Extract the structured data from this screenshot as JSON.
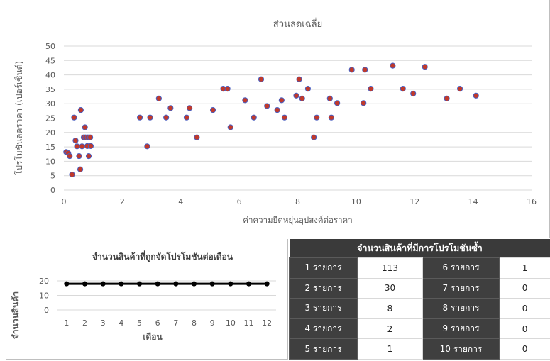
{
  "chart_data": [
    {
      "type": "scatter",
      "title": "ส่วนลดเฉลี่ย",
      "xlabel": "ค่าความยืดหยุ่นอุปสงค์ต่อราคา",
      "ylabel": "โปรโมชันลดราคา (เปอร์เซ็นต์)",
      "xlim": [
        0,
        16
      ],
      "ylim": [
        0,
        50
      ],
      "xticks": [
        "0",
        "2",
        "4",
        "6",
        "8",
        "10",
        "12",
        "14",
        "16"
      ],
      "yticks": [
        "0",
        "5",
        "10",
        "15",
        "20",
        "25",
        "30",
        "35",
        "40",
        "45",
        "50"
      ],
      "grid": true,
      "marker_color": "#c0392b",
      "marker_edge": "#4a5fc1",
      "points": [
        [
          0.08,
          13.2
        ],
        [
          0.15,
          12.8
        ],
        [
          0.2,
          11.8
        ],
        [
          0.28,
          5.4
        ],
        [
          0.35,
          25.2
        ],
        [
          0.4,
          17.2
        ],
        [
          0.45,
          15.2
        ],
        [
          0.52,
          11.8
        ],
        [
          0.56,
          7.2
        ],
        [
          0.58,
          27.8
        ],
        [
          0.62,
          15.2
        ],
        [
          0.68,
          18.3
        ],
        [
          0.72,
          21.8
        ],
        [
          0.74,
          18.3
        ],
        [
          0.8,
          15.3
        ],
        [
          0.82,
          18.3
        ],
        [
          0.85,
          11.8
        ],
        [
          0.9,
          18.3
        ],
        [
          0.92,
          15.3
        ],
        [
          2.6,
          25.2
        ],
        [
          2.85,
          15.2
        ],
        [
          2.95,
          25.2
        ],
        [
          3.25,
          31.8
        ],
        [
          3.5,
          25.2
        ],
        [
          3.65,
          28.5
        ],
        [
          4.2,
          25.2
        ],
        [
          4.3,
          28.5
        ],
        [
          4.55,
          18.3
        ],
        [
          5.1,
          27.8
        ],
        [
          5.45,
          35.2
        ],
        [
          5.6,
          35.2
        ],
        [
          5.7,
          21.8
        ],
        [
          6.2,
          31.2
        ],
        [
          6.5,
          25.2
        ],
        [
          6.75,
          38.5
        ],
        [
          6.95,
          29.2
        ],
        [
          7.3,
          27.8
        ],
        [
          7.45,
          31.2
        ],
        [
          7.55,
          25.2
        ],
        [
          7.95,
          32.8
        ],
        [
          8.05,
          38.5
        ],
        [
          8.15,
          31.8
        ],
        [
          8.35,
          35.2
        ],
        [
          8.55,
          18.3
        ],
        [
          8.65,
          25.2
        ],
        [
          9.1,
          31.8
        ],
        [
          9.15,
          25.2
        ],
        [
          9.35,
          30.2
        ],
        [
          9.85,
          41.8
        ],
        [
          10.25,
          30.2
        ],
        [
          10.3,
          41.8
        ],
        [
          10.5,
          35.2
        ],
        [
          11.25,
          43.2
        ],
        [
          11.6,
          35.2
        ],
        [
          11.95,
          33.5
        ],
        [
          12.35,
          42.8
        ],
        [
          13.1,
          31.8
        ],
        [
          13.55,
          35.2
        ],
        [
          14.1,
          32.8
        ]
      ]
    },
    {
      "type": "line",
      "title": "จำนวนสินค้าที่ถูกจัดโปรโมชันต่อเดือน",
      "xlabel": "เดือน",
      "ylabel": "จำนวนสินค้า",
      "categories": [
        "1",
        "2",
        "3",
        "4",
        "5",
        "6",
        "7",
        "8",
        "9",
        "10",
        "11",
        "12"
      ],
      "values": [
        18,
        18,
        18,
        18,
        18,
        18,
        18,
        18,
        18,
        18,
        18,
        18
      ],
      "ylim": [
        0,
        20
      ],
      "yticks": [
        "0",
        "10",
        "20"
      ],
      "line_color": "#000000"
    },
    {
      "type": "table",
      "title": "จำนวนสินค้าที่มีการโปรโมชันซ้ำ",
      "rows": [
        {
          "l1": "1 รายการ",
          "v1": "113",
          "l2": "6 รายการ",
          "v2": "1"
        },
        {
          "l1": "2 รายการ",
          "v1": "30",
          "l2": "7 รายการ",
          "v2": "0"
        },
        {
          "l1": "3 รายการ",
          "v1": "8",
          "l2": "8 รายการ",
          "v2": "0"
        },
        {
          "l1": "4 รายการ",
          "v1": "2",
          "l2": "9 รายการ",
          "v2": "0"
        },
        {
          "l1": "5 รายการ",
          "v1": "1",
          "l2": "10 รายการ",
          "v2": "0"
        }
      ]
    }
  ]
}
